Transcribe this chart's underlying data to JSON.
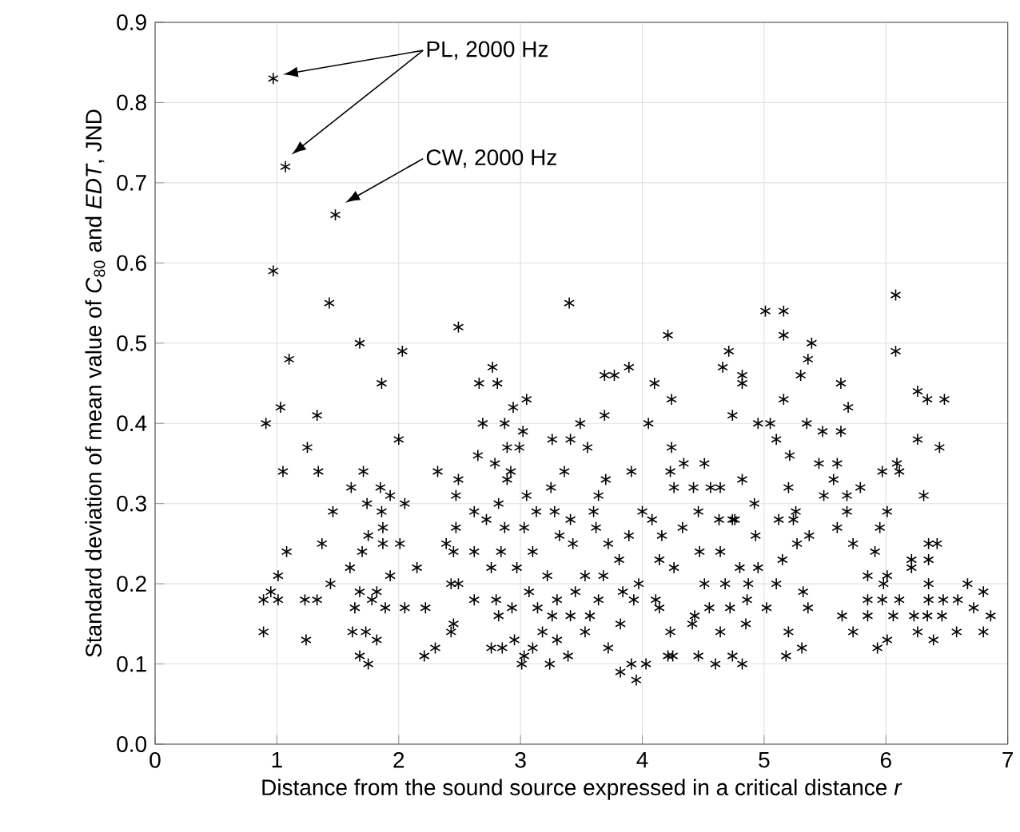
{
  "chart_data": {
    "type": "scatter",
    "xlabel": "Distance from the sound source expressed in a critical distance *r*",
    "ylabel": "Standard deviation of mean value of *C*$_{80}$ and *EDT*, JND",
    "xlim": [
      0,
      7
    ],
    "ylim": [
      0,
      0.9
    ],
    "xticks": [
      0,
      1,
      2,
      3,
      4,
      5,
      6,
      7
    ],
    "yticks": [
      {
        "value": 0,
        "label": "0.0"
      },
      0.1,
      0.2,
      0.3,
      0.4,
      0.5,
      0.6,
      0.7,
      0.8,
      0.9
    ],
    "grid": true,
    "marker": "cross",
    "annotations": [
      "PL, 2000 Hz",
      "CW, 2000 Hz"
    ],
    "series": [
      {
        "color": "#000000",
        "x": [
          0.97,
          1.07,
          1.48,
          0.97,
          1.43,
          1.1,
          1.68,
          2.03,
          1.86,
          1.03,
          1.33,
          0.91,
          1.25,
          2.0,
          1.05,
          1.34,
          1.71,
          1.61,
          1.85,
          1.46,
          1.74,
          1.86,
          2.05,
          1.93,
          1.08,
          1.37,
          1.75,
          1.87,
          1.87,
          2.01,
          1.7,
          1.6,
          2.15,
          1.93,
          1.01,
          0.95,
          0.89,
          1.01,
          1.23,
          1.33,
          1.44,
          1.68,
          1.82,
          1.78,
          1.64,
          1.89,
          2.05,
          2.22,
          0.89,
          1.24,
          1.62,
          1.73,
          1.82,
          1.68,
          1.75,
          2.21,
          2.32,
          2.49,
          2.49,
          2.47,
          2.39,
          2.43,
          2.43,
          2.3,
          3.4,
          2.77,
          2.81,
          2.66,
          3.05,
          2.94,
          2.87,
          2.69,
          4.21,
          3.69,
          3.77,
          3.89,
          4.1,
          4.24,
          4.71,
          4.66,
          4.74,
          3.69,
          4.05,
          3.26,
          3.41,
          3.49,
          3.55,
          3.02,
          2.89,
          2.99,
          2.65,
          2.79,
          2.89,
          2.92,
          3.36,
          3.25,
          3.05,
          3.7,
          3.64,
          3.91,
          4.24,
          4.34,
          4.51,
          4.23,
          4.26,
          4.42,
          4.56,
          4.64,
          2.62,
          2.82,
          3.13,
          3.28,
          3.41,
          3.6,
          4.0,
          4.08,
          4.46,
          4.63,
          2.47,
          2.72,
          2.87,
          3.03,
          3.32,
          3.62,
          3.89,
          4.16,
          4.33,
          4.74,
          2.62,
          2.84,
          3.1,
          3.43,
          3.72,
          3.81,
          4.14,
          4.47,
          4.64,
          2.45,
          2.76,
          2.97,
          3.22,
          3.53,
          3.68,
          4.26,
          4.51,
          4.68,
          2.49,
          2.62,
          2.8,
          3.07,
          3.45,
          3.3,
          3.64,
          3.97,
          3.84,
          4.11,
          3.93,
          2.93,
          3.14,
          3.26,
          3.41,
          3.57,
          3.82,
          4.14,
          4.43,
          4.55,
          4.72,
          2.45,
          2.82,
          2.95,
          3.18,
          3.3,
          3.53,
          4.23,
          4.41,
          4.64,
          2.76,
          2.85,
          3.03,
          3.1,
          3.01,
          3.24,
          3.39,
          3.72,
          3.82,
          3.95,
          3.91,
          4.03,
          4.21,
          4.25,
          4.46,
          4.6,
          4.74,
          4.82,
          4.82,
          5.01,
          5.16,
          5.16,
          5.39,
          5.36,
          5.3,
          6.08,
          6.08,
          5.63,
          5.69,
          5.16,
          6.26,
          6.34,
          6.48,
          4.95,
          5.05,
          5.1,
          5.35,
          5.48,
          5.63,
          6.26,
          6.44,
          5.21,
          5.45,
          5.6,
          6.09,
          6.11,
          5.97,
          4.82,
          5.2,
          5.57,
          5.49,
          5.68,
          5.79,
          6.31,
          4.92,
          5.26,
          5.12,
          5.24,
          5.68,
          5.6,
          6.01,
          5.95,
          4.76,
          4.93,
          5.27,
          5.37,
          5.73,
          5.91,
          6.35,
          6.42,
          6.21,
          6.35,
          6.21,
          5.15,
          4.8,
          4.95,
          5.85,
          6.01,
          5.1,
          4.87,
          5.32,
          5.98,
          6.35,
          6.67,
          6.8,
          4.86,
          5.85,
          5.97,
          6.11,
          6.35,
          6.47,
          6.59,
          6.72,
          5.02,
          5.36,
          5.64,
          5.73,
          5.85,
          6.06,
          6.23,
          6.34,
          6.46,
          6.86,
          6.26,
          6.58,
          6.8,
          4.85,
          5.93,
          6.01,
          6.39,
          5.2,
          5.31,
          5.18,
          4.82
        ],
        "values": [
          0.83,
          0.72,
          0.66,
          0.59,
          0.55,
          0.48,
          0.5,
          0.49,
          0.45,
          0.42,
          0.41,
          0.4,
          0.37,
          0.38,
          0.34,
          0.34,
          0.34,
          0.32,
          0.32,
          0.29,
          0.3,
          0.29,
          0.3,
          0.31,
          0.24,
          0.25,
          0.26,
          0.27,
          0.25,
          0.25,
          0.24,
          0.22,
          0.22,
          0.21,
          0.21,
          0.19,
          0.18,
          0.18,
          0.18,
          0.18,
          0.2,
          0.19,
          0.19,
          0.18,
          0.17,
          0.17,
          0.17,
          0.17,
          0.14,
          0.13,
          0.14,
          0.14,
          0.13,
          0.11,
          0.1,
          0.11,
          0.34,
          0.33,
          0.52,
          0.31,
          0.25,
          0.2,
          0.14,
          0.12,
          0.55,
          0.47,
          0.45,
          0.45,
          0.43,
          0.42,
          0.4,
          0.4,
          0.51,
          0.46,
          0.46,
          0.47,
          0.45,
          0.43,
          0.49,
          0.47,
          0.41,
          0.41,
          0.4,
          0.38,
          0.38,
          0.4,
          0.37,
          0.39,
          0.37,
          0.37,
          0.36,
          0.35,
          0.33,
          0.34,
          0.34,
          0.32,
          0.31,
          0.33,
          0.31,
          0.34,
          0.37,
          0.35,
          0.35,
          0.34,
          0.32,
          0.32,
          0.32,
          0.32,
          0.29,
          0.3,
          0.29,
          0.29,
          0.28,
          0.29,
          0.29,
          0.28,
          0.29,
          0.28,
          0.27,
          0.28,
          0.27,
          0.27,
          0.26,
          0.27,
          0.26,
          0.26,
          0.27,
          0.28,
          0.24,
          0.24,
          0.24,
          0.25,
          0.25,
          0.23,
          0.23,
          0.24,
          0.24,
          0.24,
          0.22,
          0.22,
          0.21,
          0.21,
          0.21,
          0.22,
          0.2,
          0.2,
          0.2,
          0.18,
          0.18,
          0.19,
          0.19,
          0.18,
          0.18,
          0.2,
          0.19,
          0.18,
          0.18,
          0.17,
          0.17,
          0.16,
          0.16,
          0.16,
          0.15,
          0.17,
          0.16,
          0.17,
          0.17,
          0.15,
          0.16,
          0.13,
          0.14,
          0.13,
          0.14,
          0.14,
          0.15,
          0.14,
          0.12,
          0.12,
          0.11,
          0.12,
          0.1,
          0.1,
          0.11,
          0.12,
          0.09,
          0.08,
          0.1,
          0.1,
          0.11,
          0.11,
          0.11,
          0.1,
          0.11,
          0.46,
          0.45,
          0.54,
          0.54,
          0.51,
          0.5,
          0.48,
          0.46,
          0.56,
          0.49,
          0.45,
          0.42,
          0.43,
          0.44,
          0.43,
          0.43,
          0.4,
          0.4,
          0.38,
          0.4,
          0.39,
          0.39,
          0.38,
          0.37,
          0.36,
          0.35,
          0.35,
          0.35,
          0.34,
          0.34,
          0.33,
          0.32,
          0.33,
          0.31,
          0.31,
          0.32,
          0.31,
          0.3,
          0.29,
          0.28,
          0.28,
          0.29,
          0.27,
          0.29,
          0.27,
          0.28,
          0.26,
          0.25,
          0.26,
          0.25,
          0.24,
          0.25,
          0.25,
          0.23,
          0.23,
          0.22,
          0.23,
          0.22,
          0.22,
          0.21,
          0.21,
          0.2,
          0.2,
          0.19,
          0.2,
          0.2,
          0.2,
          0.19,
          0.18,
          0.18,
          0.18,
          0.18,
          0.18,
          0.18,
          0.18,
          0.17,
          0.17,
          0.17,
          0.16,
          0.14,
          0.16,
          0.16,
          0.16,
          0.16,
          0.16,
          0.16,
          0.14,
          0.14,
          0.14,
          0.15,
          0.12,
          0.13,
          0.13,
          0.14,
          0.12,
          0.11,
          0.1
        ]
      }
    ]
  }
}
